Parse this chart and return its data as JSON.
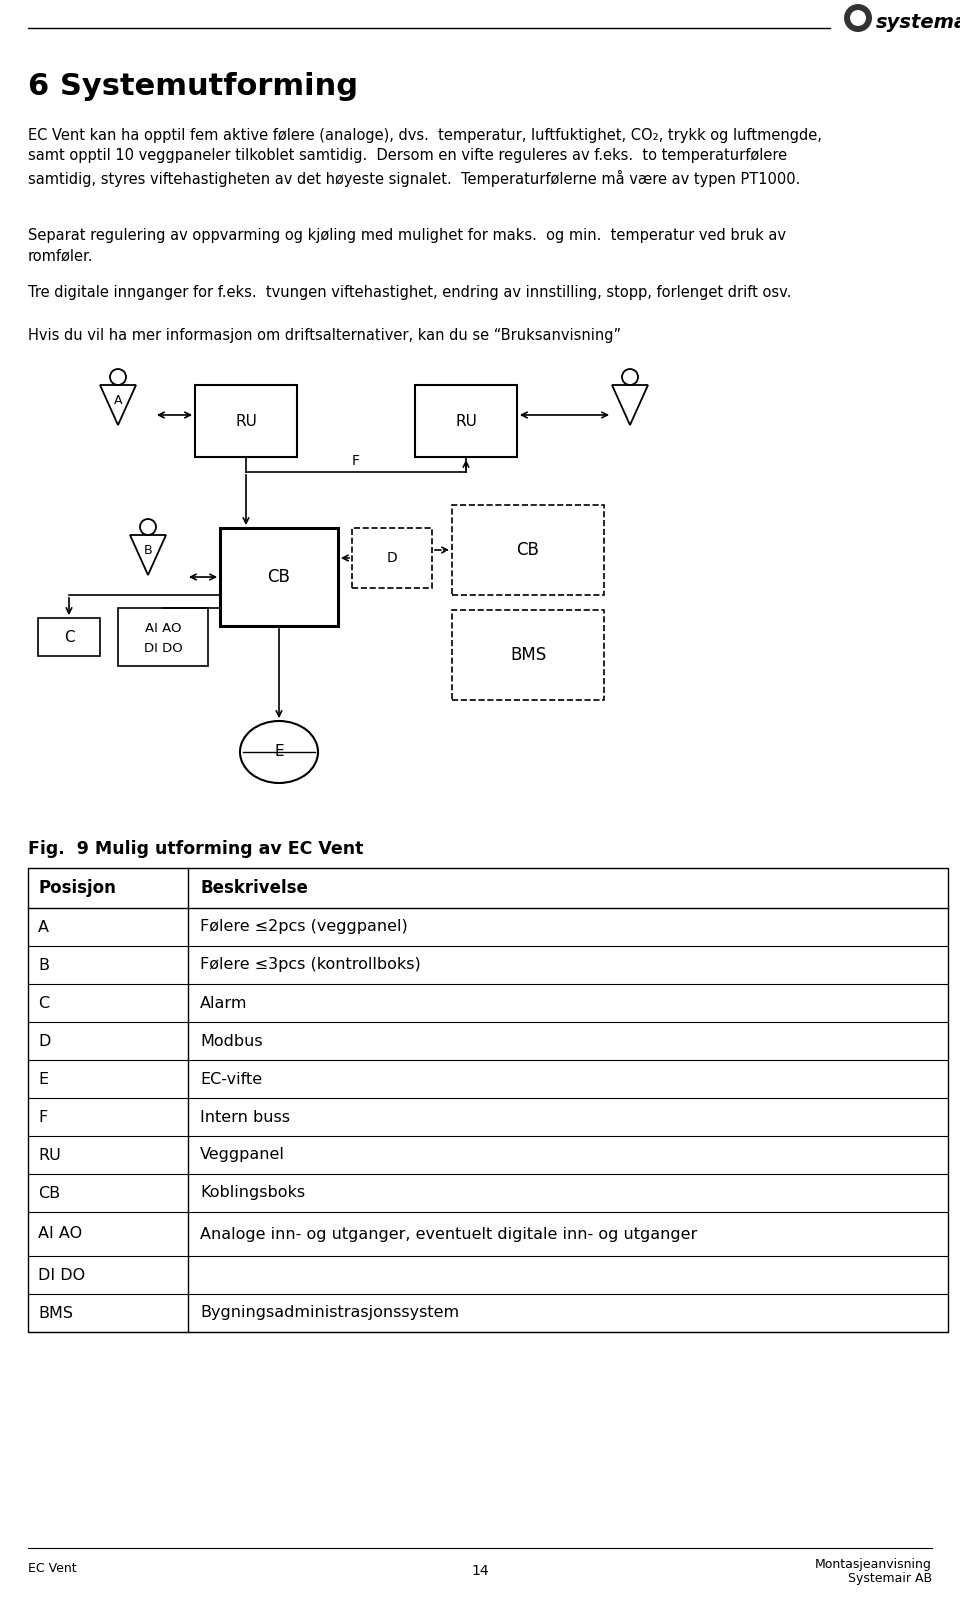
{
  "bg_color": "#ffffff",
  "logo_text": "systemair",
  "page_title": "6 Systemutforming",
  "body_paragraphs": [
    "EC Vent kan ha opptil fem aktive følere (analoge), dvs.  temperatur, luftfuktighet, CO₂, trykk og luftmengde,\nsamt opptil 10 veggpaneler tilkoblet samtidig.  Dersom en vifte reguleres av f.eks.  to temperaturfølere\nsamtidig, styres viftehastigheten av det høyeste signalet.  Temperaturfølerne må være av typen PT1000.",
    "Separat regulering av oppvarming og kjøling med mulighet for maks.  og min.  temperatur ved bruk av\nromføler.",
    "Tre digitale innganger for f.eks.  tvungen viftehastighet, endring av innstilling, stopp, forlenget drift osv.",
    "Hvis du vil ha mer informasjon om driftsalternativer, kan du se “Bruksanvisning”"
  ],
  "fig_caption": "Fig.  9 Mulig utforming av EC Vent",
  "table_headers": [
    "Posisjon",
    "Beskrivelse"
  ],
  "table_rows": [
    [
      "A",
      "Følere ≤2pcs (veggpanel)"
    ],
    [
      "B",
      "Følere ≤3pcs (kontrollboks)"
    ],
    [
      "C",
      "Alarm"
    ],
    [
      "D",
      "Modbus"
    ],
    [
      "E",
      "EC-vifte"
    ],
    [
      "F",
      "Intern buss"
    ],
    [
      "RU",
      "Veggpanel"
    ],
    [
      "CB",
      "Koblingsboks"
    ],
    [
      "AI AO",
      "Analoge inn- og utganger, eventuelt digitale inn- og utganger"
    ],
    [
      "DI DO",
      ""
    ],
    [
      "BMS",
      "Bygningsadministrasjonssystem"
    ]
  ],
  "footer_left": "EC Vent",
  "footer_center": "14",
  "footer_right_line1": "Montasjeanvisning",
  "footer_right_line2": "Systemair AB"
}
